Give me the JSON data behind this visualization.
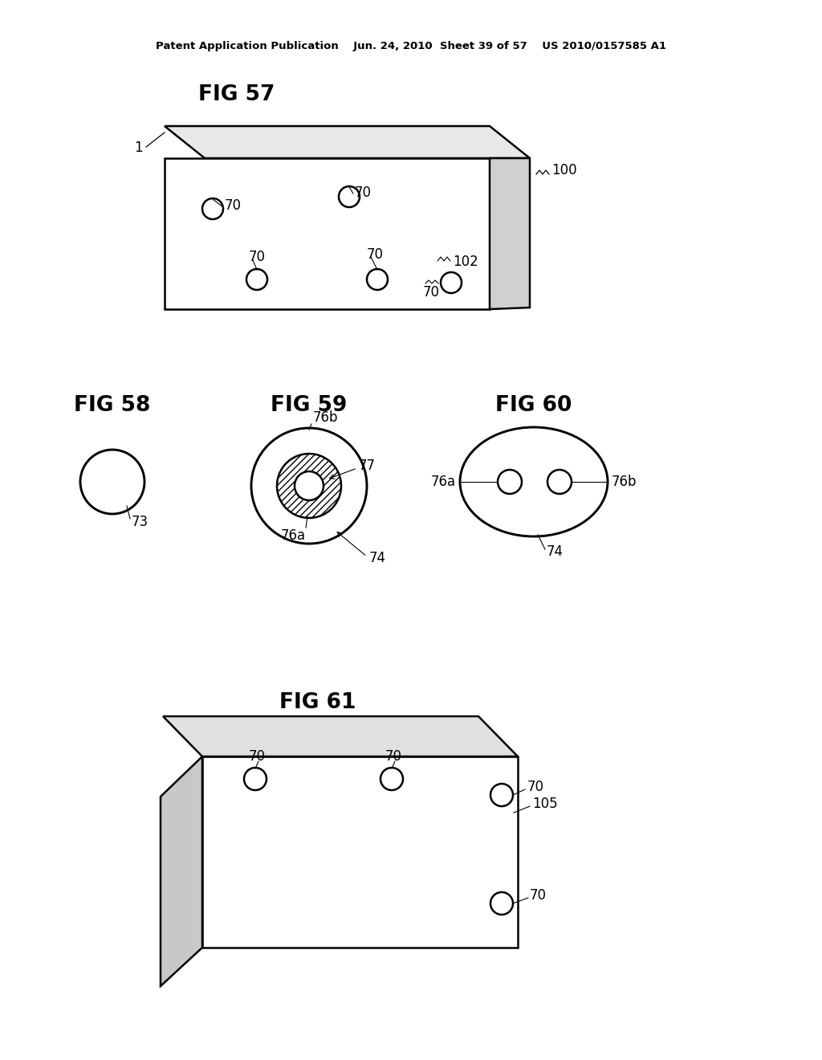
{
  "bg_color": "#ffffff",
  "header_text": "Patent Application Publication    Jun. 24, 2010  Sheet 39 of 57    US 2010/0157585 A1",
  "fig57_title": "FIG 57",
  "fig58_title": "FIG 58",
  "fig59_title": "FIG 59",
  "fig60_title": "FIG 60",
  "fig61_title": "FIG 61",
  "line_color": "#000000",
  "line_width": 1.8,
  "font_size_title": 19,
  "font_size_label": 12,
  "font_size_header": 9.5
}
